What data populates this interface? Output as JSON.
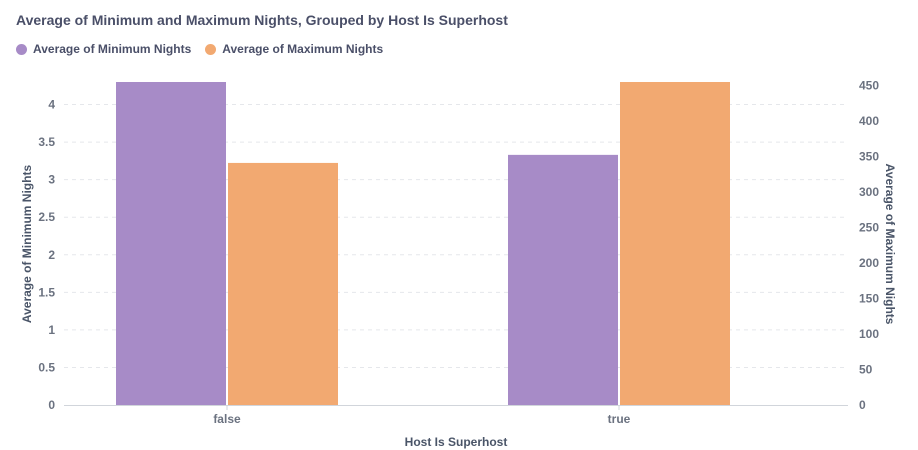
{
  "chart_data": {
    "type": "bar",
    "title": "Average of Minimum and Maximum Nights, Grouped by Host Is Superhost",
    "xlabel": "Host Is Superhost",
    "categories": [
      "false",
      "true"
    ],
    "series": [
      {
        "name": "Average of Minimum Nights",
        "axis": "left",
        "color": "#a78bc7",
        "values": [
          4.3,
          3.33
        ]
      },
      {
        "name": "Average of Maximum Nights",
        "axis": "right",
        "color": "#f2a971",
        "values": [
          341,
          455
        ]
      }
    ],
    "y_left": {
      "label": "Average of Minimum Nights",
      "ylim": [
        0,
        4.3
      ],
      "ticks": [
        "0",
        "0.5",
        "1",
        "1.5",
        "2",
        "2.5",
        "3",
        "3.5",
        "4"
      ]
    },
    "y_right": {
      "label": "Average of Maximum Nights",
      "ylim": [
        0,
        455
      ],
      "ticks": [
        "0",
        "50",
        "100",
        "150",
        "200",
        "250",
        "300",
        "350",
        "400",
        "450"
      ]
    },
    "grid": true,
    "legend_position": "top-left"
  }
}
